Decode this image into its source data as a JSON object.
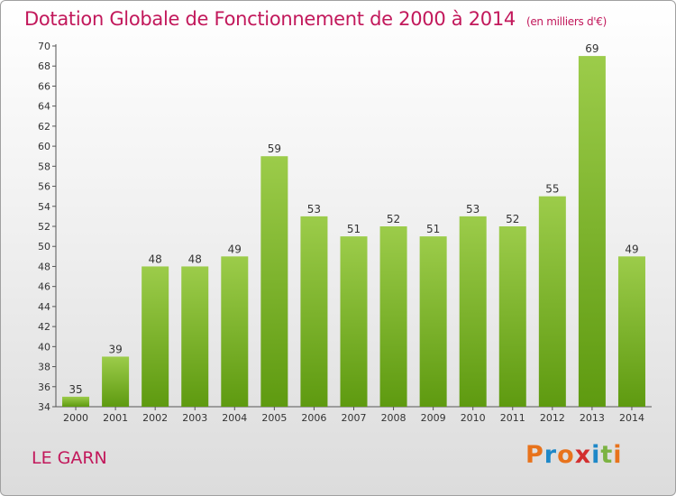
{
  "chart_data": {
    "type": "bar",
    "title": "Dotation Globale de Fonctionnement de 2000 à 2014",
    "subtitle": "(en milliers d'€)",
    "categories": [
      "2000",
      "2001",
      "2002",
      "2003",
      "2004",
      "2005",
      "2006",
      "2007",
      "2008",
      "2009",
      "2010",
      "2011",
      "2012",
      "2013",
      "2014"
    ],
    "values": [
      35,
      39,
      48,
      48,
      49,
      59,
      53,
      51,
      52,
      51,
      53,
      52,
      55,
      69,
      49
    ],
    "ylim": [
      34,
      70
    ],
    "ytick_step": 2,
    "grid": false,
    "xlabel": "",
    "ylabel": "",
    "colors": {
      "bar_top": "#9ccc4a",
      "bar_bottom": "#5e9a10",
      "title": "#c2185b"
    }
  },
  "footer": {
    "commune": "LE GARN",
    "brand": "Proxiti",
    "brand_colors": [
      "#e8731c",
      "#1e88c8",
      "#e8731c",
      "#d32f2f",
      "#1e88c8",
      "#7cb342",
      "#e8731c"
    ]
  }
}
